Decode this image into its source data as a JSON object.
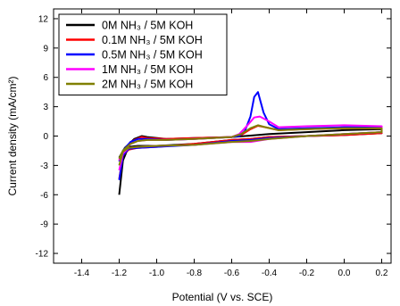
{
  "chart_data": {
    "type": "line",
    "title": "",
    "xlabel": "Potential (V vs. SCE)",
    "ylabel": "Current density (mA/cm²)",
    "xlim": [
      -1.55,
      0.25
    ],
    "ylim": [
      -13,
      13
    ],
    "xticks": [
      -1.4,
      -1.2,
      -1.0,
      -0.8,
      -0.6,
      -0.4,
      -0.2,
      0.0,
      0.2
    ],
    "xtick_labels": [
      "-1.4",
      "-1.2",
      "-1.0",
      "-0.8",
      "-0.6",
      "-0.4",
      "-0.2",
      "0.0",
      "0.2"
    ],
    "yticks": [
      12,
      9,
      6,
      3,
      0,
      -3,
      -6,
      -9,
      -12
    ],
    "ytick_labels": [
      "12",
      "9",
      "6",
      "3",
      "0",
      "-3",
      "-6",
      "-9",
      "-12"
    ],
    "legend_position": "top-left",
    "grid": false,
    "series": [
      {
        "name": "0M NH₃ / 5M KOH",
        "color": "#000000",
        "points": [
          [
            -1.2,
            -6.0
          ],
          [
            -1.18,
            -2.5
          ],
          [
            -1.15,
            -1.1
          ],
          [
            -1.1,
            -1.0
          ],
          [
            -1.0,
            -1.0
          ],
          [
            -0.8,
            -0.8
          ],
          [
            -0.6,
            -0.4
          ],
          [
            -0.5,
            -0.3
          ],
          [
            -0.4,
            -0.1
          ],
          [
            -0.2,
            0.0
          ],
          [
            0.0,
            0.1
          ],
          [
            0.2,
            0.3
          ],
          [
            0.2,
            0.7
          ],
          [
            0.0,
            0.6
          ],
          [
            -0.2,
            0.4
          ],
          [
            -0.4,
            0.2
          ],
          [
            -0.5,
            0.05
          ],
          [
            -0.6,
            -0.1
          ],
          [
            -0.8,
            -0.2
          ],
          [
            -0.95,
            -0.3
          ],
          [
            -1.05,
            -0.1
          ],
          [
            -1.08,
            0.0
          ],
          [
            -1.12,
            -0.3
          ],
          [
            -1.17,
            -1.2
          ],
          [
            -1.2,
            -2.2
          ]
        ]
      },
      {
        "name": "0.1M NH₃ / 5M KOH",
        "color": "#ff0000",
        "points": [
          [
            -1.2,
            -4.4
          ],
          [
            -1.18,
            -2.0
          ],
          [
            -1.15,
            -1.4
          ],
          [
            -1.1,
            -1.2
          ],
          [
            -1.0,
            -1.1
          ],
          [
            -0.8,
            -0.8
          ],
          [
            -0.6,
            -0.4
          ],
          [
            -0.5,
            -0.3
          ],
          [
            -0.4,
            -0.1
          ],
          [
            -0.2,
            0.0
          ],
          [
            0.0,
            0.1
          ],
          [
            0.2,
            0.3
          ],
          [
            0.2,
            0.8
          ],
          [
            0.0,
            0.8
          ],
          [
            -0.2,
            0.7
          ],
          [
            -0.35,
            0.6
          ],
          [
            -0.42,
            0.9
          ],
          [
            -0.46,
            1.05
          ],
          [
            -0.5,
            0.7
          ],
          [
            -0.55,
            0.1
          ],
          [
            -0.6,
            -0.1
          ],
          [
            -0.8,
            -0.2
          ],
          [
            -0.95,
            -0.3
          ],
          [
            -1.05,
            -0.2
          ],
          [
            -1.08,
            -0.1
          ],
          [
            -1.12,
            -0.4
          ],
          [
            -1.17,
            -1.3
          ],
          [
            -1.2,
            -2.4
          ]
        ]
      },
      {
        "name": "0.5M NH₃ / 5M KOH",
        "color": "#0000ff",
        "points": [
          [
            -1.2,
            -4.5
          ],
          [
            -1.18,
            -2.0
          ],
          [
            -1.15,
            -1.3
          ],
          [
            -1.1,
            -1.2
          ],
          [
            -1.0,
            -1.1
          ],
          [
            -0.8,
            -0.9
          ],
          [
            -0.6,
            -0.5
          ],
          [
            -0.5,
            -0.4
          ],
          [
            -0.4,
            -0.2
          ],
          [
            -0.2,
            0.0
          ],
          [
            0.0,
            0.2
          ],
          [
            0.2,
            0.4
          ],
          [
            0.2,
            0.9
          ],
          [
            0.0,
            0.9
          ],
          [
            -0.2,
            0.8
          ],
          [
            -0.35,
            0.7
          ],
          [
            -0.4,
            1.2
          ],
          [
            -0.43,
            2.4
          ],
          [
            -0.46,
            4.5
          ],
          [
            -0.48,
            4.0
          ],
          [
            -0.5,
            2.0
          ],
          [
            -0.53,
            0.5
          ],
          [
            -0.56,
            0.0
          ],
          [
            -0.6,
            -0.1
          ],
          [
            -0.8,
            -0.3
          ],
          [
            -0.95,
            -0.4
          ],
          [
            -1.05,
            -0.3
          ],
          [
            -1.1,
            -0.3
          ],
          [
            -1.14,
            -0.6
          ],
          [
            -1.18,
            -1.5
          ],
          [
            -1.2,
            -2.6
          ]
        ]
      },
      {
        "name": "1M NH₃ / 5M KOH",
        "color": "#ff00ff",
        "points": [
          [
            -1.2,
            -3.5
          ],
          [
            -1.18,
            -1.8
          ],
          [
            -1.15,
            -1.2
          ],
          [
            -1.1,
            -1.1
          ],
          [
            -1.0,
            -1.0
          ],
          [
            -0.8,
            -0.9
          ],
          [
            -0.6,
            -0.6
          ],
          [
            -0.5,
            -0.6
          ],
          [
            -0.4,
            -0.3
          ],
          [
            -0.2,
            0.0
          ],
          [
            0.0,
            0.2
          ],
          [
            0.2,
            0.4
          ],
          [
            0.2,
            1.0
          ],
          [
            0.0,
            1.1
          ],
          [
            -0.2,
            1.0
          ],
          [
            -0.35,
            0.9
          ],
          [
            -0.4,
            1.5
          ],
          [
            -0.45,
            2.0
          ],
          [
            -0.48,
            1.9
          ],
          [
            -0.52,
            1.0
          ],
          [
            -0.56,
            0.2
          ],
          [
            -0.6,
            -0.1
          ],
          [
            -0.8,
            -0.3
          ],
          [
            -0.95,
            -0.4
          ],
          [
            -1.05,
            -0.4
          ],
          [
            -1.1,
            -0.5
          ],
          [
            -1.14,
            -0.8
          ],
          [
            -1.18,
            -1.6
          ],
          [
            -1.2,
            -2.5
          ]
        ]
      },
      {
        "name": "2M NH₃ / 5M KOH",
        "color": "#808000",
        "points": [
          [
            -1.2,
            -3.0
          ],
          [
            -1.18,
            -1.6
          ],
          [
            -1.15,
            -1.2
          ],
          [
            -1.1,
            -1.1
          ],
          [
            -1.0,
            -1.0
          ],
          [
            -0.8,
            -0.9
          ],
          [
            -0.6,
            -0.6
          ],
          [
            -0.5,
            -0.5
          ],
          [
            -0.4,
            -0.3
          ],
          [
            -0.2,
            0.0
          ],
          [
            0.0,
            0.2
          ],
          [
            0.2,
            0.4
          ],
          [
            0.2,
            0.8
          ],
          [
            0.0,
            0.8
          ],
          [
            -0.2,
            0.7
          ],
          [
            -0.35,
            0.6
          ],
          [
            -0.42,
            0.9
          ],
          [
            -0.46,
            1.1
          ],
          [
            -0.5,
            0.8
          ],
          [
            -0.55,
            0.2
          ],
          [
            -0.6,
            -0.1
          ],
          [
            -0.8,
            -0.3
          ],
          [
            -0.95,
            -0.4
          ],
          [
            -1.05,
            -0.4
          ],
          [
            -1.1,
            -0.5
          ],
          [
            -1.14,
            -0.8
          ],
          [
            -1.18,
            -1.5
          ],
          [
            -1.2,
            -2.3
          ]
        ]
      }
    ]
  }
}
